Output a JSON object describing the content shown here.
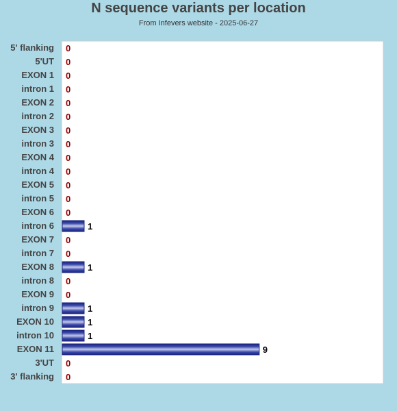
{
  "chart_data": {
    "type": "bar",
    "orientation": "horizontal",
    "title": "N sequence variants per location",
    "subtitle": "From Infevers website - 2025-06-27",
    "xlabel": "",
    "ylabel": "",
    "grid": false,
    "xlim": [
      0,
      14.7
    ],
    "categories": [
      "5' flanking",
      "5'UT",
      "EXON 1",
      "intron 1",
      "EXON 2",
      "intron 2",
      "EXON 3",
      "intron 3",
      "EXON 4",
      "intron 4",
      "EXON 5",
      "intron 5",
      "EXON 6",
      "intron 6",
      "EXON 7",
      "intron 7",
      "EXON 8",
      "intron 8",
      "EXON 9",
      "intron 9",
      "EXON 10",
      "intron 10",
      "EXON 11",
      "3'UT",
      "3' flanking"
    ],
    "values": [
      0,
      0,
      0,
      0,
      0,
      0,
      0,
      0,
      0,
      0,
      0,
      0,
      0,
      1,
      0,
      0,
      1,
      0,
      0,
      1,
      1,
      1,
      9,
      0,
      0
    ],
    "colors": {
      "background": "#add8e6",
      "plot_background": "#ffffff",
      "bar_edge": "#1a237e",
      "bar_light": "#c5cae9",
      "bar_mid": "#3949ab",
      "zero_label": "#8b0000",
      "value_label": "#000000",
      "category_label": "#444444",
      "title": "#444444"
    }
  }
}
